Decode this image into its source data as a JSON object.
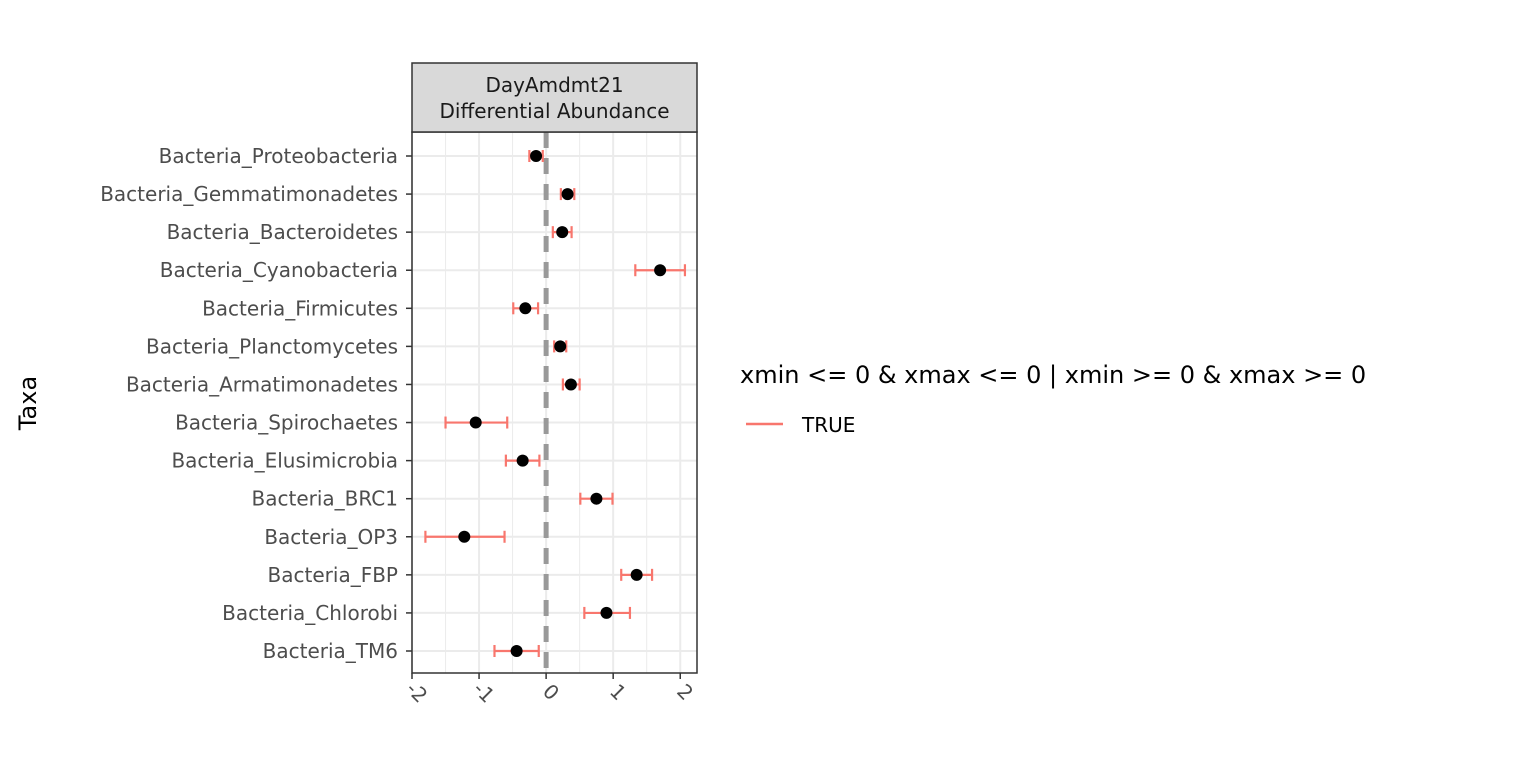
{
  "chart_data": {
    "type": "scatter",
    "facet_label_line1": "DayAmdmt21",
    "facet_label_line2": "Differential Abundance",
    "ylabel": "Taxa",
    "xlabel": "",
    "xlim": [
      -2,
      2.25
    ],
    "x_ticks": [
      "-2",
      "-1",
      "0",
      "1",
      "2"
    ],
    "x_tick_values": [
      -2,
      -1,
      0,
      1,
      2
    ],
    "reference_line_x": 0,
    "grid": true,
    "categories": [
      "Bacteria_Proteobacteria",
      "Bacteria_Gemmatimonadetes",
      "Bacteria_Bacteroidetes",
      "Bacteria_Cyanobacteria",
      "Bacteria_Firmicutes",
      "Bacteria_Planctomycetes",
      "Bacteria_Armatimonadetes",
      "Bacteria_Spirochaetes",
      "Bacteria_Elusimicrobia",
      "Bacteria_BRC1",
      "Bacteria_OP3",
      "Bacteria_FBP",
      "Bacteria_Chlorobi",
      "Bacteria_TM6"
    ],
    "estimates": [
      -0.15,
      0.32,
      0.24,
      1.7,
      -0.31,
      0.21,
      0.37,
      -1.05,
      -0.35,
      0.75,
      -1.22,
      1.35,
      0.9,
      -0.44
    ],
    "xmin": [
      -0.25,
      0.22,
      0.1,
      1.33,
      -0.49,
      0.12,
      0.25,
      -1.5,
      -0.6,
      0.51,
      -1.8,
      1.12,
      0.57,
      -0.77
    ],
    "xmax": [
      -0.05,
      0.42,
      0.38,
      2.07,
      -0.12,
      0.3,
      0.5,
      -0.58,
      -0.1,
      0.99,
      -0.62,
      1.58,
      1.25,
      -0.11
    ],
    "legend": {
      "title": "xmin <= 0 & xmax <= 0 | xmin >= 0 & xmax >= 0",
      "entries": [
        {
          "label": "TRUE",
          "color": "#F8766D"
        }
      ],
      "placement": "right"
    },
    "colors": {
      "errorbar": "#F8766D",
      "point": "#000000",
      "refline": "#999999",
      "strip_bg": "#D9D9D9",
      "grid": "#EBEBEB"
    }
  }
}
